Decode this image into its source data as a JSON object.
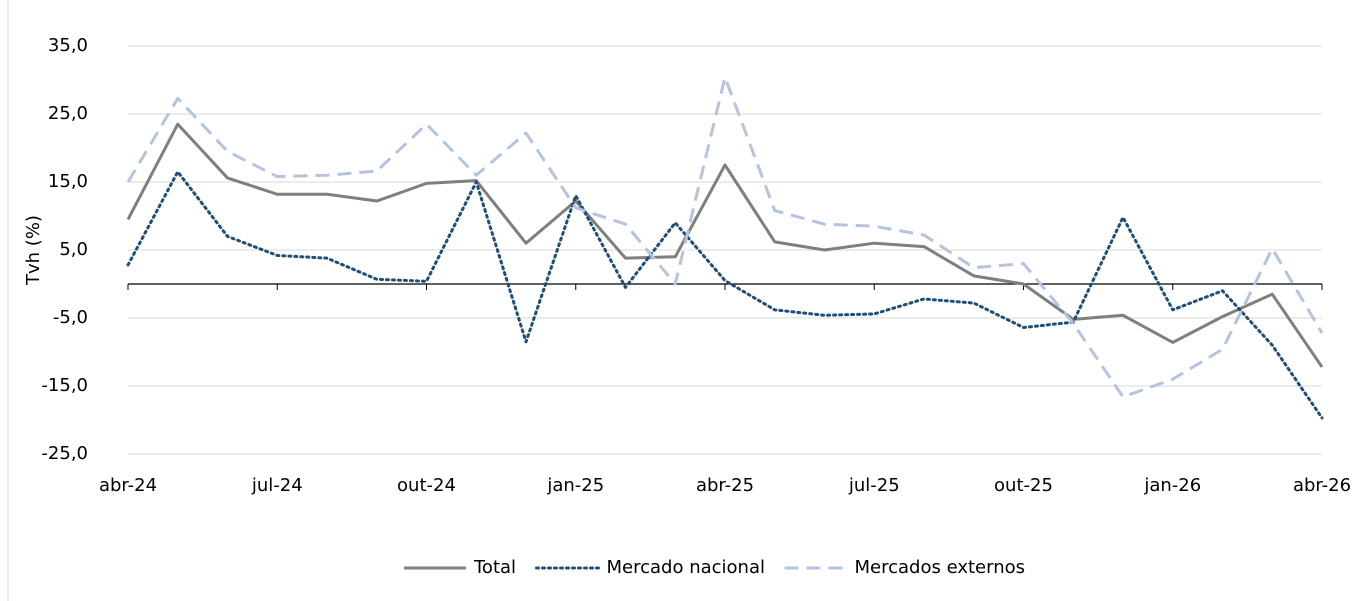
{
  "chart_data": {
    "type": "line",
    "y_label": "Tvh (%)",
    "categories": [
      "abr-24",
      null,
      null,
      "jul-24",
      null,
      null,
      "out-24",
      null,
      null,
      "jan-25",
      null,
      null,
      "abr-25",
      null,
      null,
      "jul-25",
      null,
      null,
      "out-25",
      null,
      null,
      "jan-26",
      null,
      null,
      "abr-26"
    ],
    "series": [
      {
        "name": "Total",
        "color": "#7f7f7f",
        "dash": "solid",
        "values": [
          9.5,
          23.5,
          15.6,
          13.2,
          13.2,
          12.2,
          14.8,
          15.2,
          6.0,
          12.2,
          3.8,
          4.0,
          17.5,
          6.2,
          5.0,
          6.0,
          5.5,
          1.2,
          0.0,
          -5.2,
          -4.6,
          -8.6,
          -4.8,
          -1.5,
          -12.2
        ]
      },
      {
        "name": "Mercado nacional",
        "color": "#1f4e79",
        "dash": "dotted",
        "values": [
          2.8,
          16.5,
          7.0,
          4.2,
          3.8,
          0.7,
          0.4,
          15.0,
          -8.5,
          13.0,
          -0.5,
          9.0,
          0.5,
          -3.8,
          -4.6,
          -4.4,
          -2.2,
          -2.8,
          -6.4,
          -5.6,
          9.8,
          -3.8,
          -1.0,
          -9.0,
          -19.7
        ]
      },
      {
        "name": "Mercados externos",
        "color": "#b4c3e0",
        "dash": "dashed",
        "values": [
          15.0,
          27.3,
          19.5,
          15.8,
          16.0,
          16.6,
          23.5,
          16.0,
          22.2,
          11.2,
          8.8,
          0.0,
          30.4,
          10.8,
          8.8,
          8.5,
          7.2,
          2.4,
          3.0,
          -5.8,
          -16.6,
          -14.0,
          -9.6,
          5.2,
          -7.2
        ]
      }
    ],
    "ylim": [
      -25,
      35
    ],
    "yticks": [
      {
        "value": -25,
        "label": "-25,0"
      },
      {
        "value": -15,
        "label": "-15,0"
      },
      {
        "value": -5,
        "label": "-5,0"
      },
      {
        "value": 5,
        "label": "5,0"
      },
      {
        "value": 15,
        "label": "15,0"
      },
      {
        "value": 25,
        "label": "25,0"
      },
      {
        "value": 35,
        "label": "35,0"
      }
    ],
    "grid": true,
    "legend": "bottom"
  }
}
